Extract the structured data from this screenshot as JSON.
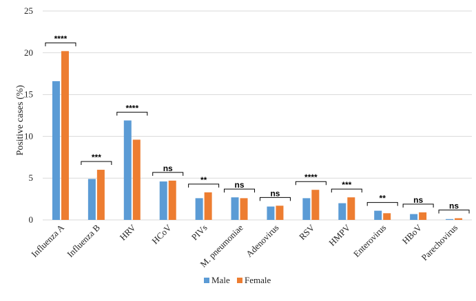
{
  "chart_data": {
    "type": "bar",
    "title": "",
    "xlabel": "",
    "ylabel": "Positive cases (%)",
    "ylim": [
      0,
      25
    ],
    "yticks": [
      0,
      5,
      10,
      15,
      20,
      25
    ],
    "grid": true,
    "legend_position": "bottom",
    "categories": [
      "Influenza A",
      "Influenza B",
      "HRV",
      "HCoV",
      "PIVs",
      "M. pneumoniae",
      "Adenovirus",
      "RSV",
      "HMPV",
      "Enterovirus",
      "HBoV",
      "Parechovirus"
    ],
    "series": [
      {
        "name": "Male",
        "color": "#5B9BD5",
        "values": [
          16.6,
          4.9,
          11.9,
          4.6,
          2.6,
          2.7,
          1.6,
          2.6,
          2.0,
          1.1,
          0.7,
          0.1
        ]
      },
      {
        "name": "Female",
        "color": "#ED7D31",
        "values": [
          20.2,
          6.0,
          9.6,
          4.7,
          3.3,
          2.6,
          1.7,
          3.6,
          2.7,
          0.8,
          0.9,
          0.2
        ]
      }
    ],
    "significance": [
      "****",
      "***",
      "****",
      "ns",
      "**",
      "ns",
      "ns",
      "****",
      "***",
      "**",
      "ns",
      "ns"
    ]
  }
}
